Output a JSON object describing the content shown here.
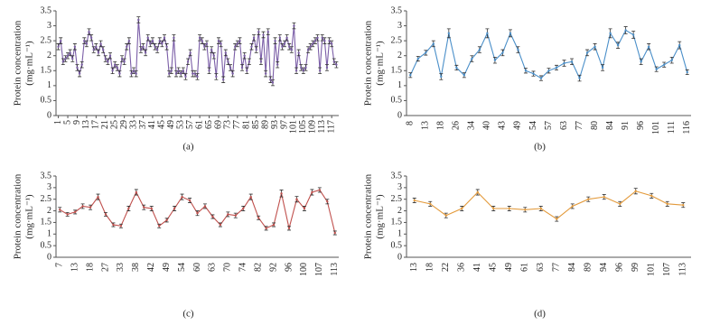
{
  "chart_data": [
    {
      "type": "line",
      "caption": "(a)",
      "ylabel": "Protein concentration",
      "ylabel_unit": "(mg·mL⁻¹)",
      "color": "#7b5ea7",
      "x": [
        1,
        2,
        3,
        4,
        5,
        6,
        7,
        8,
        9,
        10,
        11,
        12,
        13,
        14,
        15,
        16,
        17,
        18,
        19,
        20,
        21,
        22,
        23,
        24,
        25,
        26,
        27,
        28,
        29,
        30,
        31,
        32,
        33,
        34,
        35,
        36,
        37,
        38,
        39,
        40,
        41,
        42,
        43,
        44,
        45,
        46,
        47,
        48,
        49,
        50,
        51,
        52,
        53,
        54,
        55,
        56,
        57,
        58,
        59,
        60,
        61,
        62,
        63,
        64,
        65,
        66,
        67,
        68,
        69,
        70,
        71,
        72,
        73,
        74,
        75,
        76,
        77,
        78,
        79,
        80,
        81,
        82,
        83,
        84,
        85,
        86,
        87,
        88,
        89,
        90,
        91,
        92,
        93,
        94,
        95,
        96,
        97,
        98,
        99,
        100,
        101,
        102,
        103,
        104,
        105,
        106,
        107,
        108,
        109,
        110,
        111,
        112,
        113,
        114,
        115,
        116,
        117,
        118,
        119
      ],
      "values": [
        2.3,
        2.5,
        1.8,
        1.9,
        2.0,
        2.1,
        1.9,
        2.3,
        1.6,
        1.4,
        1.7,
        2.5,
        2.4,
        2.8,
        2.6,
        2.2,
        2.3,
        2.1,
        2.4,
        2.2,
        1.9,
        1.8,
        2.0,
        1.5,
        1.7,
        1.6,
        1.4,
        1.9,
        1.8,
        2.3,
        2.5,
        1.4,
        1.5,
        1.4,
        3.2,
        2.2,
        2.3,
        2.1,
        2.6,
        2.4,
        2.5,
        2.3,
        2.2,
        2.5,
        2.4,
        2.6,
        2.3,
        1.4,
        1.5,
        2.6,
        1.4,
        1.5,
        1.4,
        1.5,
        1.3,
        1.8,
        2.1,
        1.4,
        1.4,
        1.3,
        2.6,
        2.5,
        2.3,
        2.4,
        1.5,
        2.2,
        2.0,
        1.3,
        2.5,
        2.4,
        1.2,
        2.1,
        1.8,
        1.6,
        1.4,
        2.3,
        2.4,
        2.5,
        1.6,
        2.0,
        1.5,
        1.8,
        2.3,
        2.6,
        2.2,
        2.8,
        1.8,
        2.7,
        1.4,
        2.8,
        1.2,
        1.1,
        2.5,
        1.7,
        2.6,
        2.3,
        2.4,
        2.6,
        2.3,
        2.2,
        3.0,
        1.5,
        2.1,
        1.6,
        1.5,
        1.6,
        2.2,
        2.3,
        2.4,
        2.5,
        2.6,
        1.5,
        2.6,
        2.5,
        1.6,
        2.5,
        2.4,
        1.8,
        1.7
      ],
      "errors": [
        0.1,
        0.1,
        0.1,
        0.1,
        0.1,
        0.1,
        0.1,
        0.1,
        0.1,
        0.1,
        0.1,
        0.1,
        0.1,
        0.1,
        0.1,
        0.1,
        0.1,
        0.1,
        0.1,
        0.1,
        0.1,
        0.1,
        0.1,
        0.1,
        0.1,
        0.1,
        0.1,
        0.1,
        0.1,
        0.1,
        0.1,
        0.1,
        0.1,
        0.1,
        0.1,
        0.1,
        0.1,
        0.1,
        0.1,
        0.1,
        0.1,
        0.1,
        0.1,
        0.1,
        0.1,
        0.1,
        0.1,
        0.1,
        0.1,
        0.1,
        0.1,
        0.1,
        0.1,
        0.1,
        0.1,
        0.1,
        0.1,
        0.1,
        0.1,
        0.1,
        0.1,
        0.1,
        0.1,
        0.1,
        0.1,
        0.1,
        0.1,
        0.1,
        0.1,
        0.1,
        0.1,
        0.1,
        0.1,
        0.1,
        0.1,
        0.1,
        0.1,
        0.1,
        0.1,
        0.1,
        0.1,
        0.1,
        0.1,
        0.1,
        0.1,
        0.1,
        0.1,
        0.1,
        0.1,
        0.1,
        0.1,
        0.1,
        0.1,
        0.1,
        0.1,
        0.1,
        0.1,
        0.1,
        0.1,
        0.1,
        0.1,
        0.1,
        0.1,
        0.1,
        0.1,
        0.1,
        0.1,
        0.1,
        0.1,
        0.1,
        0.1,
        0.1,
        0.1,
        0.1,
        0.1,
        0.1,
        0.1,
        0.1,
        0.1
      ],
      "xlim": [
        0,
        120
      ],
      "xticks": [
        1,
        5,
        9,
        13,
        17,
        21,
        25,
        29,
        33,
        37,
        41,
        45,
        49,
        53,
        57,
        61,
        65,
        69,
        73,
        77,
        81,
        85,
        89,
        93,
        97,
        101,
        105,
        109,
        113,
        117
      ],
      "ylim": [
        0,
        3.5
      ],
      "yticks": [
        0,
        0.5,
        1,
        1.5,
        2,
        2.5,
        3,
        3.5
      ]
    },
    {
      "type": "line",
      "caption": "(b)",
      "ylabel": "Protein concentration",
      "ylabel_unit": "(mg·mL⁻¹)",
      "color": "#4a8fc9",
      "categories": [
        "8",
        null,
        "13",
        null,
        "18",
        null,
        "26",
        null,
        "34",
        null,
        "40",
        null,
        "43",
        null,
        "49",
        null,
        "54",
        null,
        "57",
        null,
        "63",
        null,
        "77",
        null,
        "80",
        null,
        "84",
        null,
        "91",
        null,
        "96",
        null,
        "101",
        null,
        "111",
        null,
        "116"
      ],
      "values": [
        1.35,
        1.9,
        2.1,
        2.4,
        1.3,
        2.75,
        1.6,
        1.35,
        1.9,
        2.2,
        2.75,
        1.85,
        2.1,
        2.75,
        2.2,
        1.5,
        1.4,
        1.25,
        1.5,
        1.6,
        1.75,
        1.8,
        1.25,
        2.1,
        2.3,
        1.6,
        2.75,
        2.35,
        2.85,
        2.7,
        1.8,
        2.3,
        1.55,
        1.7,
        1.85,
        2.35,
        1.45
      ],
      "errors": [
        0.08,
        0.08,
        0.08,
        0.1,
        0.1,
        0.15,
        0.08,
        0.08,
        0.1,
        0.1,
        0.15,
        0.1,
        0.1,
        0.12,
        0.1,
        0.08,
        0.08,
        0.08,
        0.08,
        0.08,
        0.1,
        0.1,
        0.1,
        0.1,
        0.1,
        0.1,
        0.15,
        0.1,
        0.12,
        0.12,
        0.1,
        0.1,
        0.08,
        0.08,
        0.1,
        0.12,
        0.08
      ],
      "ylim": [
        0,
        3.5
      ],
      "yticks": [
        0,
        0.5,
        1,
        1.5,
        2,
        2.5,
        3,
        3.5
      ]
    },
    {
      "type": "line",
      "caption": "(c)",
      "ylabel": "Protein concentration",
      "ylabel_unit": "(mg·mL⁻¹)",
      "color": "#c0504d",
      "categories": [
        "7",
        null,
        "13",
        null,
        "18",
        null,
        "27",
        null,
        "33",
        null,
        "38",
        null,
        "42",
        null,
        "49",
        null,
        "54",
        null,
        "60",
        null,
        "63",
        null,
        "70",
        null,
        "74",
        null,
        "82",
        null,
        "92",
        null,
        "96",
        null,
        "100",
        null,
        "107",
        null,
        "113"
      ],
      "values": [
        2.05,
        1.85,
        1.95,
        2.2,
        2.15,
        2.6,
        1.85,
        1.4,
        1.35,
        2.1,
        2.8,
        2.15,
        2.1,
        1.35,
        1.6,
        2.1,
        2.6,
        2.45,
        1.9,
        2.2,
        1.75,
        1.4,
        1.85,
        1.8,
        2.1,
        2.6,
        1.7,
        1.25,
        1.4,
        2.75,
        1.25,
        2.5,
        2.1,
        2.8,
        2.9,
        2.4,
        1.05
      ],
      "errors": [
        0.1,
        0.08,
        0.08,
        0.1,
        0.1,
        0.12,
        0.08,
        0.08,
        0.08,
        0.1,
        0.12,
        0.1,
        0.1,
        0.08,
        0.08,
        0.1,
        0.12,
        0.1,
        0.1,
        0.1,
        0.08,
        0.08,
        0.1,
        0.1,
        0.1,
        0.12,
        0.08,
        0.08,
        0.08,
        0.15,
        0.08,
        0.12,
        0.1,
        0.12,
        0.1,
        0.1,
        0.08
      ],
      "ylim": [
        0,
        3.5
      ],
      "yticks": [
        0,
        0.5,
        1,
        1.5,
        2,
        2.5,
        3,
        3.5
      ]
    },
    {
      "type": "line",
      "caption": "(d)",
      "ylabel": "Protein concentration",
      "ylabel_unit": "(mg·mL⁻¹)",
      "color": "#e39a3b",
      "categories": [
        "13",
        "18",
        "22",
        "36",
        "41",
        "45",
        "49",
        "61",
        "63",
        "77",
        "84",
        "89",
        "94",
        "96",
        "99",
        "101",
        "107",
        "113"
      ],
      "values": [
        2.45,
        2.3,
        1.8,
        2.1,
        2.8,
        2.1,
        2.1,
        2.05,
        2.1,
        1.65,
        2.2,
        2.5,
        2.6,
        2.3,
        2.85,
        2.65,
        2.3,
        2.25
      ],
      "errors": [
        0.1,
        0.1,
        0.1,
        0.1,
        0.12,
        0.1,
        0.1,
        0.1,
        0.1,
        0.1,
        0.1,
        0.1,
        0.1,
        0.1,
        0.12,
        0.1,
        0.1,
        0.1
      ],
      "ylim": [
        0,
        3.5
      ],
      "yticks": [
        0,
        0.5,
        1,
        1.5,
        2,
        2.5,
        3,
        3.5
      ]
    }
  ]
}
